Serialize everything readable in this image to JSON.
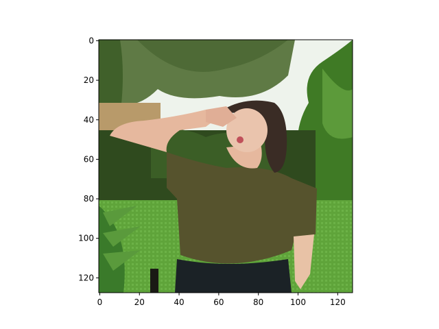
{
  "figure": {
    "image_description": "Pixelated photo of a woman in an olive t-shirt with one arm raised over her head, hand near her face, standing in a garden with trees and green lawn",
    "x_ticks": [
      "0",
      "20",
      "40",
      "60",
      "80",
      "100",
      "120"
    ],
    "y_ticks": [
      "0",
      "20",
      "40",
      "60",
      "80",
      "100",
      "120"
    ],
    "x_range": [
      -0.5,
      127.5
    ],
    "y_range": [
      127.5,
      -0.5
    ],
    "colors": {
      "sky": "#eef3ec",
      "tree_canopy": "#5f7a45",
      "hedge": "#2f4a1e",
      "lawn": "#5fa43a",
      "shirt": "#56532d",
      "skin": "#e6b89e",
      "hair": "#3a2c25",
      "pants": "#1b2226",
      "axis": "#000000"
    }
  }
}
